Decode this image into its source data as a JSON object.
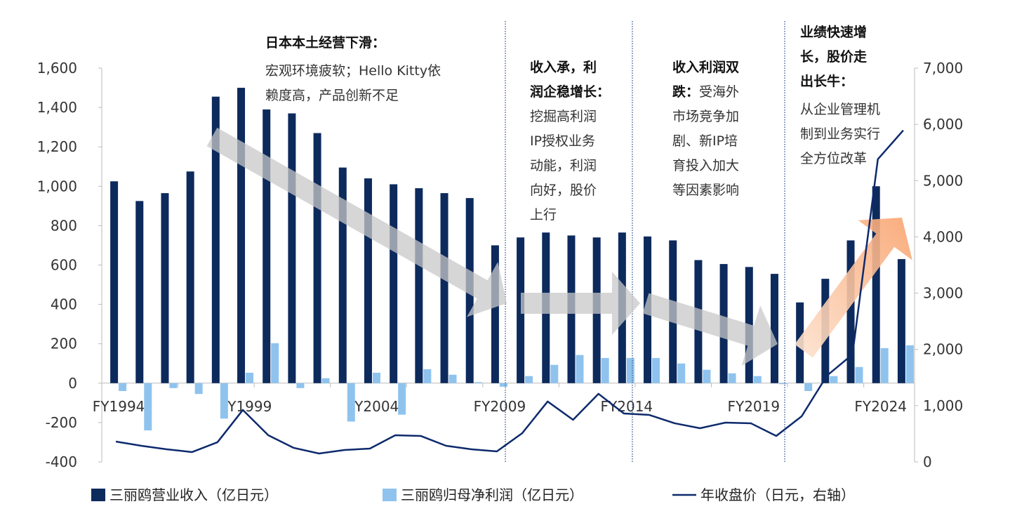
{
  "chart_data": {
    "type": "bar+line",
    "title": "",
    "categories": [
      "FY1994",
      "FY1995",
      "FY1996",
      "FY1997",
      "FY1998",
      "FY1999",
      "FY2000",
      "FY2001",
      "FY2002",
      "FY2003",
      "FY2004",
      "FY2005",
      "FY2006",
      "FY2007",
      "FY2008",
      "FY2009",
      "FY2010",
      "FY2011",
      "FY2012",
      "FY2013",
      "FY2014",
      "FY2015",
      "FY2016",
      "FY2017",
      "FY2018",
      "FY2019",
      "FY2020",
      "FY2021",
      "FY2022",
      "FY2023",
      "FY2024",
      "FY2025"
    ],
    "x_tick_labels": [
      "FY1994",
      "FY1999",
      "FY2004",
      "FY2009",
      "FY2014",
      "FY2019",
      "FY2024"
    ],
    "series": [
      {
        "name": "三丽鸥营业收入（亿日元）",
        "type": "bar",
        "axis": "left",
        "color": "#0d2a5c",
        "values": [
          1025,
          925,
          965,
          1075,
          1455,
          1500,
          1390,
          1370,
          1270,
          1095,
          1040,
          1010,
          990,
          965,
          940,
          700,
          740,
          765,
          750,
          740,
          765,
          745,
          725,
          625,
          605,
          590,
          555,
          410,
          530,
          725,
          1000,
          630
        ]
      },
      {
        "name": "三丽鸥归母净利润（亿日元）",
        "type": "bar",
        "axis": "left",
        "color": "#8fc3ee",
        "values": [
          -40,
          -240,
          -25,
          -55,
          -180,
          53,
          203,
          -25,
          25,
          -195,
          53,
          -160,
          71,
          43,
          5,
          -18,
          36,
          93,
          143,
          128,
          128,
          128,
          100,
          68,
          50,
          36,
          -5,
          -40,
          36,
          82,
          178,
          192
        ]
      },
      {
        "name": "年收盘价（日元，右轴）",
        "type": "line",
        "axis": "right",
        "color": "#0d2a6c",
        "values": [
          362,
          287,
          225,
          175,
          350,
          924,
          474,
          250,
          150,
          212,
          237,
          474,
          462,
          287,
          225,
          187,
          512,
          1074,
          749,
          1211,
          861,
          836,
          687,
          599,
          699,
          687,
          462,
          811,
          1536,
          1910,
          5380,
          5893
        ]
      }
    ],
    "left_axis": {
      "ylim": [
        -400,
        1600
      ],
      "ticks": [
        -400,
        -200,
        0,
        200,
        400,
        600,
        800,
        1000,
        1200,
        1400,
        1600
      ],
      "tick_labels": [
        "-400",
        "-200",
        "0",
        "200",
        "400",
        "600",
        "800",
        "1,000",
        "1,200",
        "1,400",
        "1,600"
      ]
    },
    "right_axis": {
      "ylim": [
        0,
        7000
      ],
      "ticks": [
        0,
        1000,
        2000,
        3000,
        4000,
        5000,
        6000,
        7000
      ],
      "tick_labels": [
        "0",
        "1,000",
        "2,000",
        "3,000",
        "4,000",
        "5,000",
        "6,000",
        "7,000"
      ]
    },
    "legend_position": "bottom",
    "grid": false,
    "annotations": [
      {
        "lines": [
          [
            {
              "t": "日本本土经营下滑：",
              "b": true
            }
          ],
          [
            {
              "t": "宏观环境疲软；Hello Kitty依"
            }
          ],
          [
            {
              "t": "赖度高，产品创新不足"
            }
          ]
        ]
      },
      {
        "lines": [
          [
            {
              "t": "收入承，利",
              "b": true
            }
          ],
          [
            {
              "t": "润企稳增长：",
              "b": true
            }
          ],
          [
            {
              "t": "挖掘高利润"
            }
          ],
          [
            {
              "t": "IP授权业务"
            }
          ],
          [
            {
              "t": "动能，利润"
            }
          ],
          [
            {
              "t": "向好，股价"
            }
          ],
          [
            {
              "t": "上行"
            }
          ]
        ]
      },
      {
        "lines": [
          [
            {
              "t": "收入利润双",
              "b": true
            }
          ],
          [
            {
              "t": "跌：",
              "b": true
            },
            {
              "t": "受海外"
            }
          ],
          [
            {
              "t": "市场竞争加"
            }
          ],
          [
            {
              "t": "剧、新IP培"
            }
          ],
          [
            {
              "t": "育投入加大"
            }
          ],
          [
            {
              "t": "等因素影响"
            }
          ]
        ]
      },
      {
        "lines": [
          [
            {
              "t": "业绩快速增",
              "b": true
            }
          ],
          [
            {
              "t": "长，股价走",
              "b": true
            }
          ],
          [
            {
              "t": "出长牛：",
              "b": true
            }
          ],
          [
            {
              "t": "从企业管理机"
            }
          ],
          [
            {
              "t": "制到业务实行"
            }
          ],
          [
            {
              "t": "全方位改革"
            }
          ]
        ]
      }
    ],
    "phase_dividers_after": [
      "FY2009",
      "FY2014",
      "FY2020"
    ]
  }
}
